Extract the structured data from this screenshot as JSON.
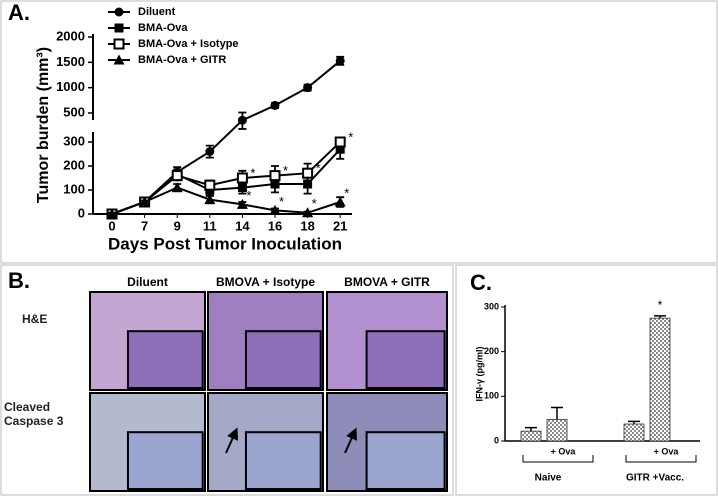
{
  "chart_data": [
    {
      "type": "line",
      "panel_label": "A.",
      "x_label": "Days Post Tumor Inoculation",
      "y_label": "Tumor burden (mm³)",
      "categories": [
        "0",
        "7",
        "9",
        "11",
        "14",
        "16",
        "18",
        "21"
      ],
      "ylim": [
        0,
        2000
      ],
      "y_break": [
        300,
        500
      ],
      "yticks": [
        0,
        100,
        200,
        300,
        500,
        1000,
        1500,
        2000
      ],
      "legend": "upper left",
      "series": [
        {
          "name": "Diluent",
          "color": "#000000",
          "marker": "circle",
          "values": [
            0,
            50,
            175,
            260,
            450,
            650,
            1000,
            1530
          ],
          "errors": [
            5,
            8,
            20,
            25,
            60,
            50,
            60,
            80
          ]
        },
        {
          "name": "BMA-Ova",
          "color": "#000000",
          "marker": "square",
          "values": [
            0,
            50,
            165,
            100,
            110,
            125,
            125,
            270
          ],
          "errors": [
            5,
            6,
            20,
            20,
            25,
            35,
            40,
            40
          ]
        },
        {
          "name": "BMA-Ova + Isotype",
          "color": "#000000",
          "marker": "square-open",
          "values": [
            0,
            50,
            160,
            120,
            150,
            160,
            170,
            300
          ],
          "errors": [
            5,
            6,
            20,
            20,
            30,
            40,
            40,
            30
          ]
        },
        {
          "name": "BMA-Ova + GITR",
          "color": "#000000",
          "marker": "triangle",
          "values": [
            0,
            50,
            110,
            60,
            40,
            15,
            5,
            50
          ],
          "errors": [
            5,
            6,
            15,
            15,
            10,
            8,
            5,
            20
          ]
        }
      ],
      "annotation": {
        "text": "*",
        "categories": [
          "14",
          "16",
          "18",
          "21"
        ]
      }
    },
    {
      "type": "bar",
      "panel_label": "C.",
      "y_label": "IFN-γ (pg/ml)",
      "categories": [
        null,
        "+ Ova",
        null,
        "+ Ova"
      ],
      "groups": [
        "Naive",
        "GITR +Vacc."
      ],
      "values": [
        22,
        48,
        38,
        275
      ],
      "errors": [
        8,
        27,
        6,
        5
      ],
      "color": "#8c8c8c",
      "pattern": "checker",
      "ylim": [
        0,
        300
      ],
      "yticks": [
        0,
        100,
        200,
        300
      ],
      "annotation": {
        "text": "*",
        "index": 3
      }
    }
  ],
  "histology": {
    "panel_label": "B.",
    "columns": [
      "Diluent",
      "BMOVA + Isotype",
      "BMOVA + GITR"
    ],
    "rows": [
      "H&E",
      "Cleaved Caspase 3"
    ]
  }
}
